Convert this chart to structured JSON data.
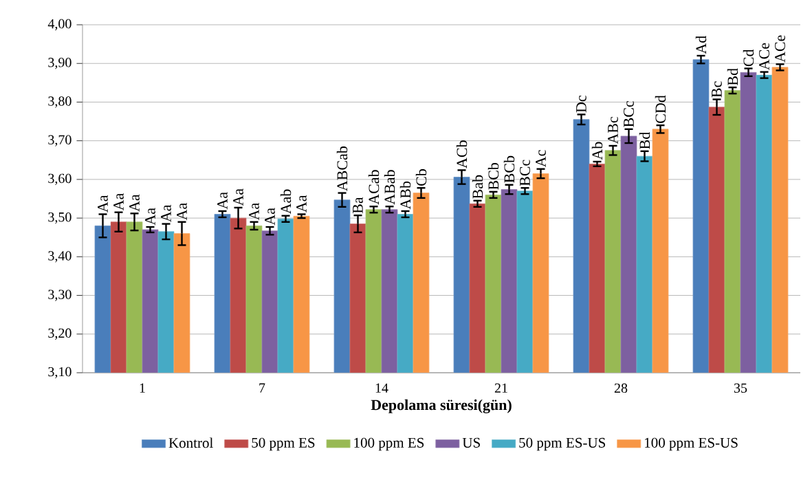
{
  "chart_data": {
    "type": "bar",
    "xlabel": "Depolama süresi(gün)",
    "categories": [
      "1",
      "7",
      "14",
      "21",
      "28",
      "35"
    ],
    "ylim": [
      3.1,
      4.0
    ],
    "yticks": [
      {
        "value": 3.1,
        "label": "3,10"
      },
      {
        "value": 3.2,
        "label": "3,20"
      },
      {
        "value": 3.3,
        "label": "3,30"
      },
      {
        "value": 3.4,
        "label": "3,40"
      },
      {
        "value": 3.5,
        "label": "3,50"
      },
      {
        "value": 3.6,
        "label": "3,60"
      },
      {
        "value": 3.7,
        "label": "3,70"
      },
      {
        "value": 3.8,
        "label": "3,80"
      },
      {
        "value": 3.9,
        "label": "3,90"
      },
      {
        "value": 4.0,
        "label": "4,00"
      }
    ],
    "grid": "y",
    "legend": "bottom",
    "series": [
      {
        "name": "Kontrol",
        "color": "#4a7ebb",
        "values": [
          3.48,
          3.51,
          3.547,
          3.606,
          3.755,
          3.91
        ],
        "errors": [
          0.03,
          0.008,
          0.018,
          0.018,
          0.013,
          0.01
        ],
        "value_labels": [
          "Aa",
          "Aa",
          "ABCab",
          "ACb",
          "Dc",
          "Ad"
        ]
      },
      {
        "name": "50 ppm ES",
        "color": "#be4b48",
        "values": [
          3.49,
          3.5,
          3.485,
          3.537,
          3.64,
          3.787
        ],
        "errors": [
          0.025,
          0.027,
          0.022,
          0.008,
          0.006,
          0.02
        ],
        "value_labels": [
          "Aa",
          "Aa",
          "Ba",
          "Bab",
          "Ab",
          "Bc"
        ]
      },
      {
        "name": "100 ppm ES",
        "color": "#98b954",
        "values": [
          3.49,
          3.48,
          3.522,
          3.56,
          3.675,
          3.83
        ],
        "errors": [
          0.022,
          0.01,
          0.008,
          0.008,
          0.012,
          0.008
        ],
        "value_labels": [
          "Aa",
          "Aa",
          "ACab",
          "BCb",
          "ABc",
          "Bd"
        ]
      },
      {
        "name": "US",
        "color": "#7d60a0",
        "values": [
          3.47,
          3.467,
          3.522,
          3.574,
          3.712,
          3.877
        ],
        "errors": [
          0.007,
          0.01,
          0.008,
          0.012,
          0.018,
          0.01
        ],
        "value_labels": [
          "Aa",
          "Aa",
          "ABab",
          "BCb",
          "BCc",
          "Cd"
        ]
      },
      {
        "name": "50 ppm ES-US",
        "color": "#46aac5",
        "values": [
          3.465,
          3.498,
          3.51,
          3.57,
          3.66,
          3.87
        ],
        "errors": [
          0.02,
          0.008,
          0.008,
          0.008,
          0.013,
          0.008
        ],
        "value_labels": [
          "Aa",
          "Aab",
          "ABb",
          "BCc",
          "Bd",
          "ACe"
        ]
      },
      {
        "name": "100 ppm ES-US",
        "color": "#f79646",
        "values": [
          3.46,
          3.505,
          3.565,
          3.615,
          3.73,
          3.89
        ],
        "errors": [
          0.03,
          0.005,
          0.013,
          0.012,
          0.01,
          0.008
        ],
        "value_labels": [
          "Aa",
          "Aa",
          "Cb",
          "Ac",
          "CDd",
          "ACe"
        ]
      }
    ]
  }
}
